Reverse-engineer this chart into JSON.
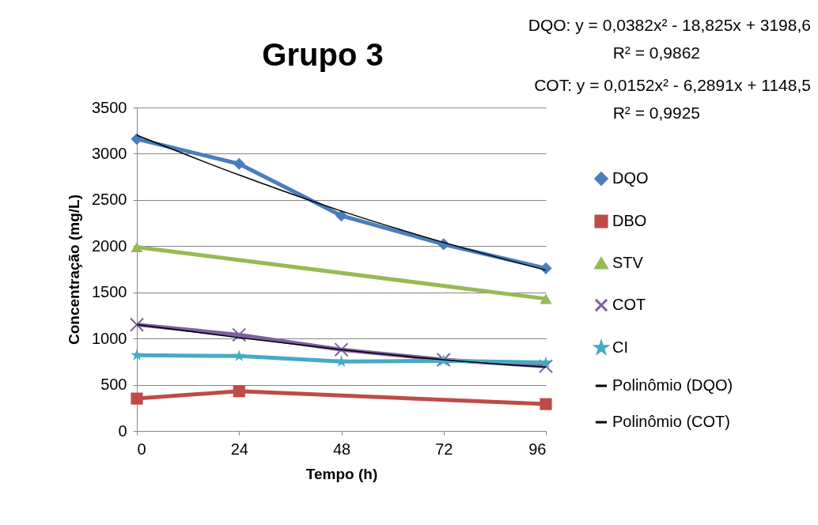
{
  "chart_data": {
    "type": "line",
    "title": "Grupo 3",
    "xlabel": "Tempo (h)",
    "ylabel": "Concentração (mg/L)",
    "x": [
      0,
      24,
      48,
      72,
      96
    ],
    "series": [
      {
        "name": "DQO",
        "color": "#4a7ebb",
        "marker": "diamond",
        "values": [
          3160,
          2890,
          2330,
          2020,
          1760
        ]
      },
      {
        "name": "DBO",
        "color": "#be4b48",
        "marker": "square",
        "values": [
          350,
          430,
          null,
          null,
          290
        ]
      },
      {
        "name": "STV",
        "color": "#98b954",
        "marker": "triangle",
        "values": [
          1990,
          null,
          null,
          null,
          1430
        ]
      },
      {
        "name": "COT",
        "color": "#7d60a0",
        "marker": "cross",
        "values": [
          1150,
          1040,
          880,
          770,
          700
        ]
      },
      {
        "name": "CI",
        "color": "#46aac5",
        "marker": "star",
        "values": [
          820,
          810,
          750,
          760,
          740
        ]
      },
      {
        "name": "Polinômio (DQO)",
        "type": "line",
        "color": "#000000",
        "marker": "none",
        "x": [
          0,
          24,
          48,
          72,
          96
        ],
        "values": [
          3200,
          2770,
          2380,
          2040,
          1740
        ]
      },
      {
        "name": "Polinômio (COT)",
        "type": "line",
        "color": "#000000",
        "marker": "none",
        "x": [
          0,
          24,
          48,
          72,
          96
        ],
        "values": [
          1150,
          1010,
          880,
          770,
          690
        ]
      }
    ],
    "xlim": [
      0,
      96
    ],
    "xticks": [
      0,
      24,
      48,
      72,
      96
    ],
    "ylim": [
      0,
      3500
    ],
    "yticks": [
      0,
      500,
      1000,
      1500,
      2000,
      2500,
      3000,
      3500
    ],
    "grid": "y",
    "legend": "right",
    "line_style": "solid",
    "annotations": [
      "DQO: y = 0,0382x² - 18,825x + 3198,6",
      "R² = 0,9862",
      "COT: y = 0,0152x² - 6,2891x + 1148,5",
      "R² = 0,9925"
    ]
  }
}
